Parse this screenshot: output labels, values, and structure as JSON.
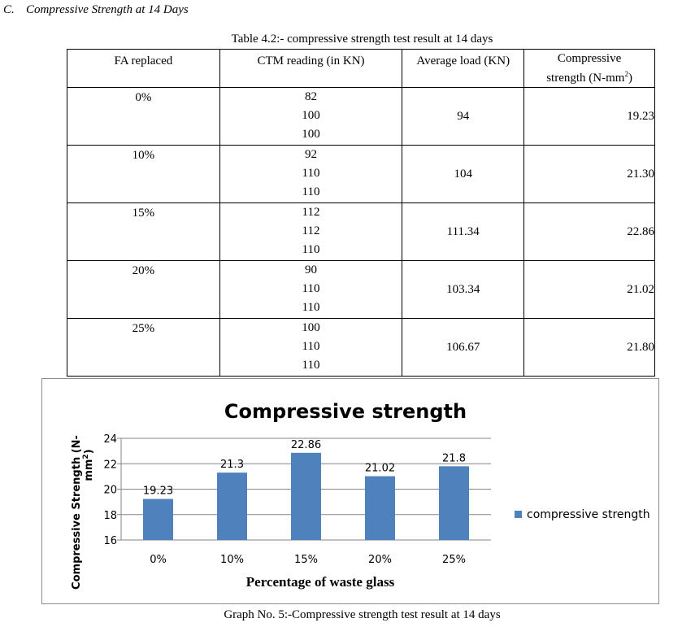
{
  "heading": {
    "section": "C.",
    "title": "Compressive Strength at 14 Days"
  },
  "table": {
    "caption": "Table 4.2:- compressive strength test result at 14 days",
    "headers": {
      "fa": "FA replaced",
      "ctm": "CTM reading (in KN)",
      "avg": "Average load (KN)",
      "cs_line1": "Compressive",
      "cs_line2": "strength (N-mm",
      "cs_sup": "2",
      "cs_end": ")"
    },
    "rows": [
      {
        "fa": "0%",
        "readings": [
          "82",
          "100",
          "100"
        ],
        "avg": "94",
        "cs": "19.23"
      },
      {
        "fa": "10%",
        "readings": [
          "92",
          "110",
          "110"
        ],
        "avg": "104",
        "cs": "21.30"
      },
      {
        "fa": "15%",
        "readings": [
          "112",
          "112",
          "110"
        ],
        "avg": "111.34",
        "cs": "22.86"
      },
      {
        "fa": "20%",
        "readings": [
          "90",
          "110",
          "110"
        ],
        "avg": "103.34",
        "cs": "21.02"
      },
      {
        "fa": "25%",
        "readings": [
          "100",
          "110",
          "110"
        ],
        "avg": "106.67",
        "cs": "21.80"
      }
    ]
  },
  "chart_data": {
    "type": "bar",
    "title": "Compressive strength",
    "xlabel": "Percentage of waste glass",
    "ylabel": "Compressive Strength (N-mm²)",
    "ylabel_line1": "Compressive Strength (N-",
    "ylabel_line2": "mm",
    "ylabel_sup": "2",
    "ylabel_end": ")",
    "categories": [
      "0%",
      "10%",
      "15%",
      "20%",
      "25%"
    ],
    "series": [
      {
        "name": "compressive strength",
        "values": [
          19.23,
          21.3,
          22.86,
          21.02,
          21.8
        ],
        "color": "#4f81bd"
      }
    ],
    "data_labels": [
      "19.23",
      "21.3",
      "22.86",
      "21.02",
      "21.8"
    ],
    "ylim": [
      16,
      24
    ],
    "yticks": [
      16,
      18,
      20,
      22,
      24
    ],
    "grid": true,
    "legend": "right"
  },
  "graph_caption": "Graph No. 5:-Compressive strength test result at 14 days"
}
